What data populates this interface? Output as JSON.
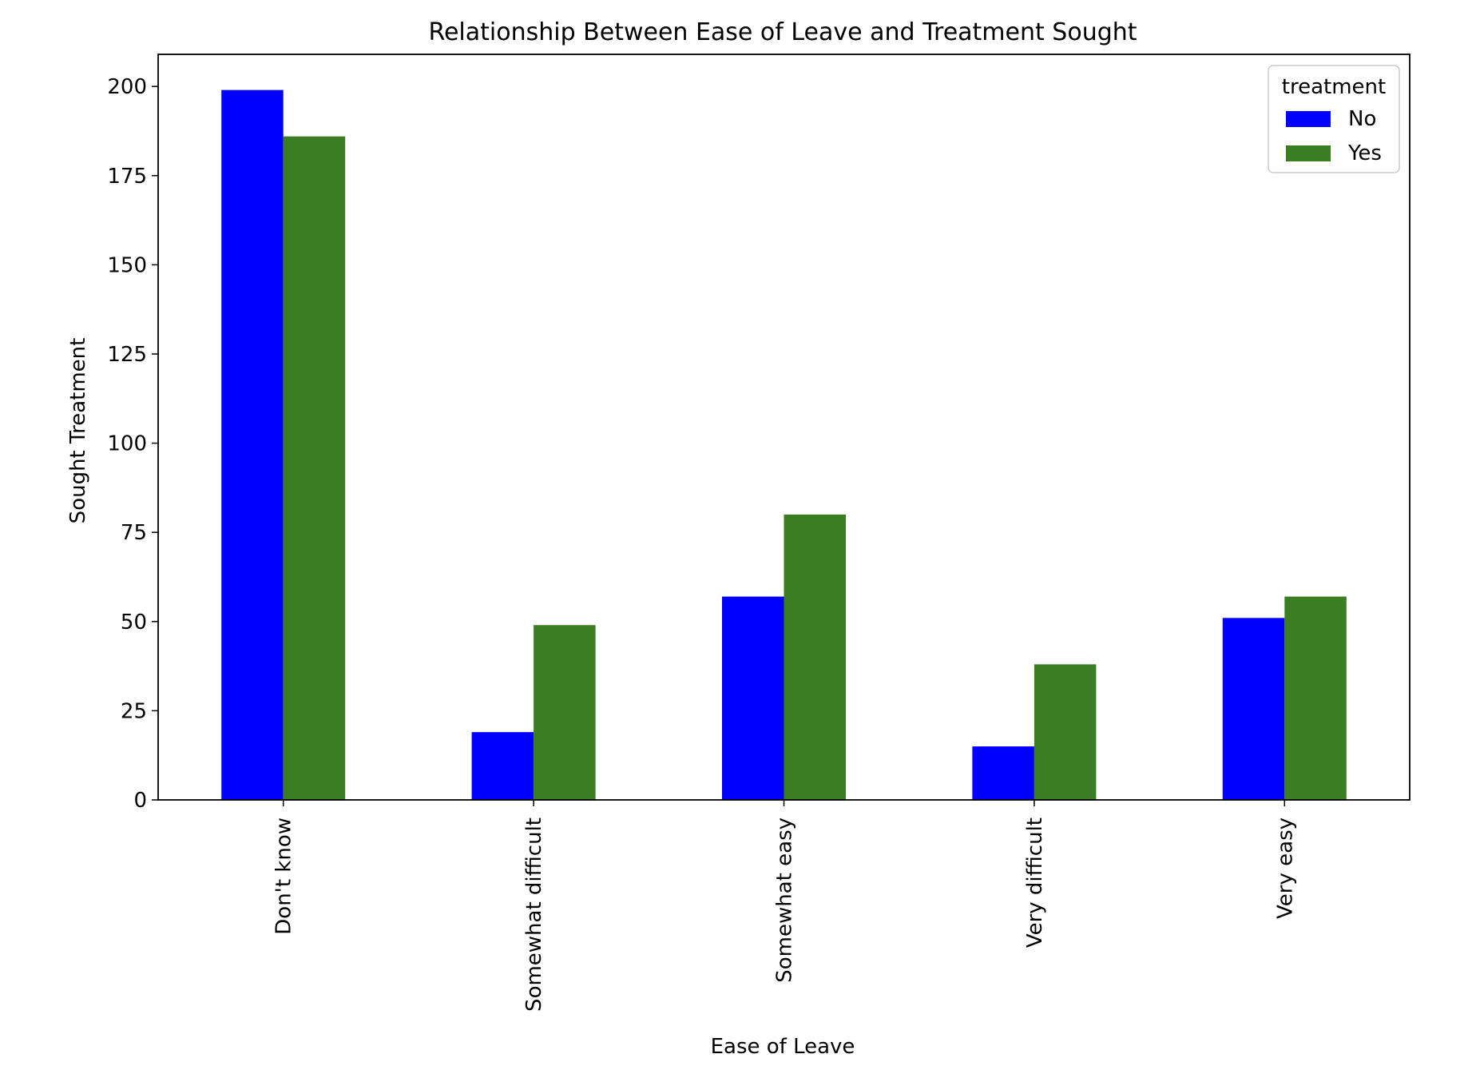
{
  "chart_data": {
    "type": "bar",
    "title": "Relationship Between Ease of Leave and Treatment Sought",
    "xlabel": "Ease of Leave",
    "ylabel": "Sought Treatment",
    "categories": [
      "Don't know",
      "Somewhat difficult",
      "Somewhat easy",
      "Very difficult",
      "Very easy"
    ],
    "series": [
      {
        "name": "No",
        "values": [
          199,
          19,
          57,
          15,
          51
        ],
        "color": "#0000ff"
      },
      {
        "name": "Yes",
        "values": [
          186,
          49,
          80,
          38,
          57
        ],
        "color": "#3a7d22"
      }
    ],
    "ylim": [
      0,
      209
    ],
    "yticks": [
      0,
      25,
      50,
      75,
      100,
      125,
      150,
      175,
      200
    ],
    "legend": {
      "title": "treatment",
      "position": "top-right"
    },
    "grid": false
  }
}
